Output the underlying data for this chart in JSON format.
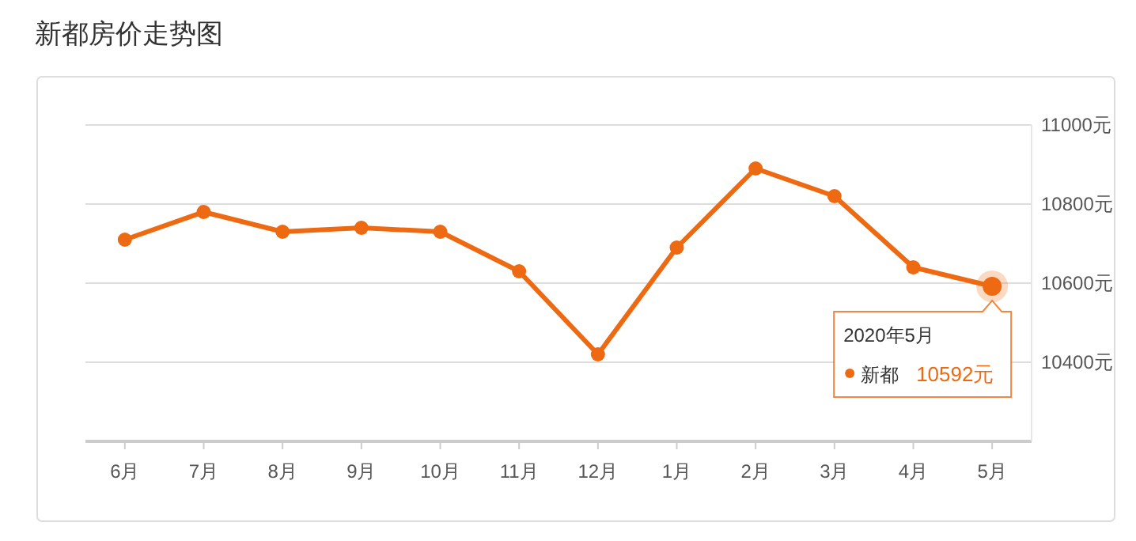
{
  "chart_data": {
    "type": "line",
    "title": "新都房价走势图",
    "categories": [
      "6月",
      "7月",
      "8月",
      "9月",
      "10月",
      "11月",
      "12月",
      "1月",
      "2月",
      "3月",
      "4月",
      "5月"
    ],
    "series": [
      {
        "name": "新都",
        "color": "#ee6a12",
        "values": [
          10710,
          10780,
          10730,
          10740,
          10730,
          10630,
          10420,
          10690,
          10890,
          10820,
          10640,
          10592
        ],
        "value_labels": [
          null,
          null,
          null,
          null,
          null,
          null,
          null,
          null,
          null,
          null,
          null,
          "10592元"
        ]
      }
    ],
    "annotations": [
      "2020年5月"
    ],
    "ylim": [
      10200,
      11000
    ],
    "yticks": [
      {
        "value": 10400,
        "label": "10400元"
      },
      {
        "value": 10600,
        "label": "10600元"
      },
      {
        "value": 10800,
        "label": "10800元"
      },
      {
        "value": 11000,
        "label": "11000元"
      }
    ],
    "grid": "y",
    "marker": "circle",
    "line_style": "solid"
  }
}
